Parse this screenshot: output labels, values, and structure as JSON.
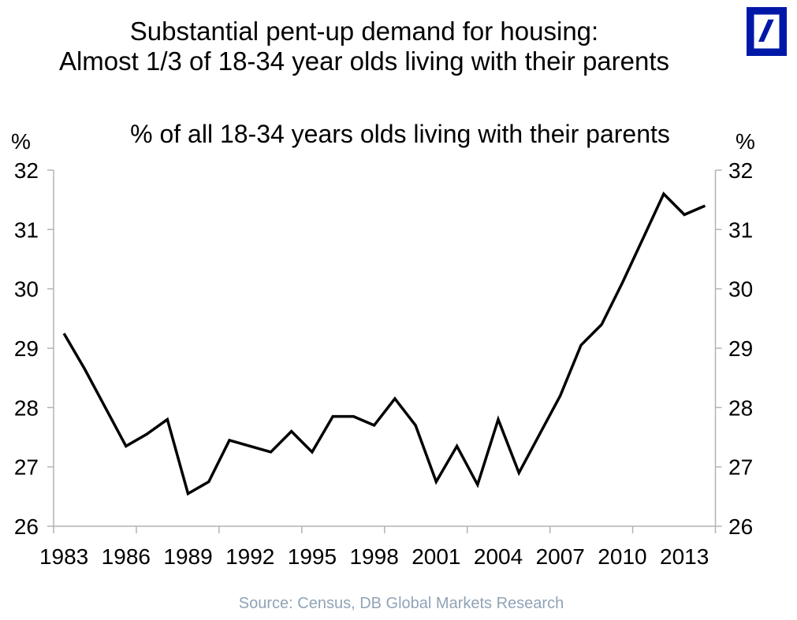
{
  "header": {
    "title_line1": "Substantial pent-up demand for housing:",
    "title_line2": "Almost 1/3 of 18-34 year olds living with their parents",
    "logo": "deutsche-bank-logo",
    "logo_color": "#0018A8"
  },
  "chart_data": {
    "type": "line",
    "title": "% of all 18-34 years olds living with their parents",
    "y_axis_unit": "%",
    "x": [
      1983,
      1984,
      1985,
      1986,
      1987,
      1988,
      1989,
      1990,
      1991,
      1992,
      1993,
      1994,
      1995,
      1996,
      1997,
      1998,
      1999,
      2000,
      2001,
      2002,
      2003,
      2004,
      2005,
      2006,
      2007,
      2008,
      2009,
      2010,
      2011,
      2012,
      2013,
      2014
    ],
    "values": [
      29.25,
      28.65,
      28.0,
      27.35,
      27.55,
      27.8,
      26.55,
      26.75,
      27.45,
      27.35,
      27.25,
      27.6,
      27.25,
      27.85,
      27.85,
      27.7,
      28.15,
      27.7,
      26.75,
      27.35,
      26.7,
      27.8,
      26.9,
      27.55,
      28.2,
      29.05,
      29.4,
      30.1,
      30.85,
      31.6,
      31.25,
      31.4
    ],
    "x_ticklabels": [
      "1983",
      "1986",
      "1989",
      "1992",
      "1995",
      "1998",
      "2001",
      "2004",
      "2007",
      "2010",
      "2013"
    ],
    "y_ticks": [
      26,
      27,
      28,
      29,
      30,
      31,
      32
    ],
    "ylim": [
      26,
      32
    ],
    "grid": false,
    "legend": "none",
    "line_color": "#000000",
    "axis_color": "#b3b3b3"
  },
  "footer": {
    "source": "Source: Census, DB Global Markets Research",
    "source_color": "#90a3b6"
  }
}
